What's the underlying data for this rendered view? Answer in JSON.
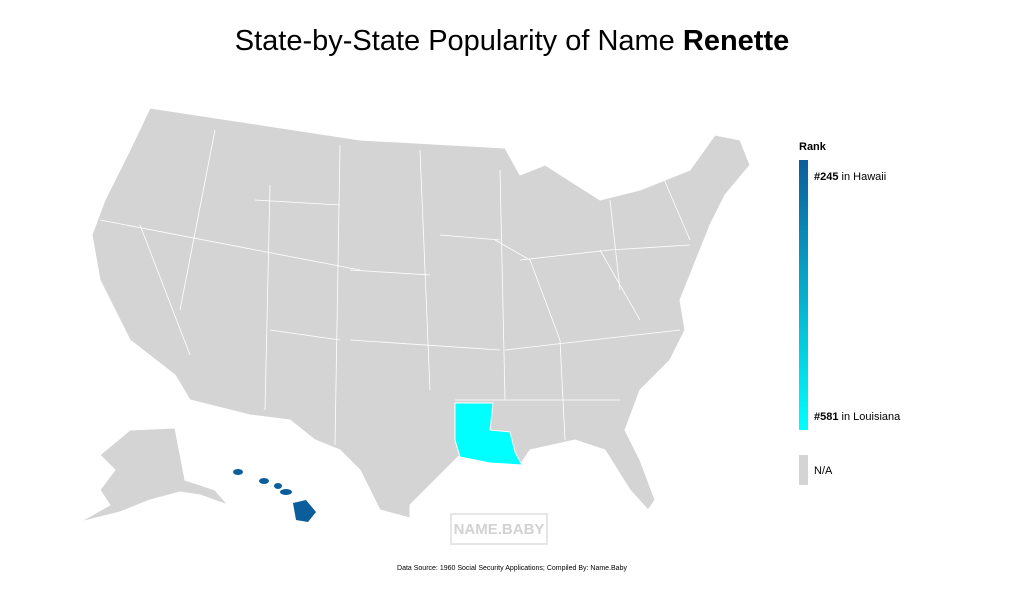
{
  "title": {
    "text": "State-by-State Popularity of Name",
    "name": "Renette"
  },
  "legend": {
    "title": "Rank",
    "high": {
      "rank": {
        "value": 245,
        "label": "#245"
      },
      "text": "in Hawaii",
      "color": "#0b5e9b"
    },
    "low": {
      "rank": {
        "value": 581,
        "label": "#581"
      },
      "text": "in Louisiana",
      "color": "#00ffff"
    },
    "na": {
      "text": "N/A",
      "color": "#d4d4d4"
    }
  },
  "watermark": "NAME.BABY",
  "source": "Data Source: 1960 Social Security Applications; Compiled By: Name.Baby"
}
